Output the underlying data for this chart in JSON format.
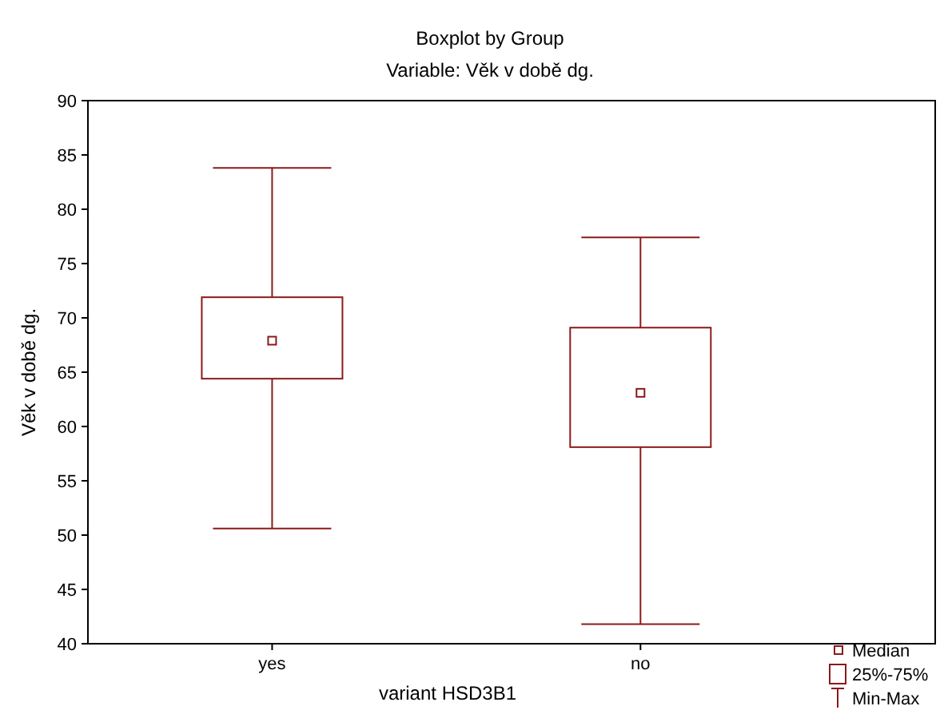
{
  "chart_data": {
    "type": "box",
    "title": "Boxplot by Group",
    "subtitle": "Variable: Věk v době dg.",
    "xlabel": "variant HSD3B1",
    "ylabel": "Věk v době dg.",
    "categories": [
      "yes",
      "no"
    ],
    "color": "#8b1a1a",
    "boxes": [
      {
        "low": 50.6,
        "q1": 64.4,
        "median": 67.9,
        "q3": 71.9,
        "high": 83.8
      },
      {
        "low": 41.8,
        "q1": 58.1,
        "median": 63.1,
        "q3": 69.1,
        "high": 77.4
      }
    ],
    "ylim": [
      40,
      90
    ],
    "yticks": [
      40,
      45,
      50,
      55,
      60,
      65,
      70,
      75,
      80,
      85,
      90
    ],
    "grid": false,
    "marker": "square",
    "annotations": [
      "Median",
      "25%-75%",
      "Min-Max"
    ]
  }
}
